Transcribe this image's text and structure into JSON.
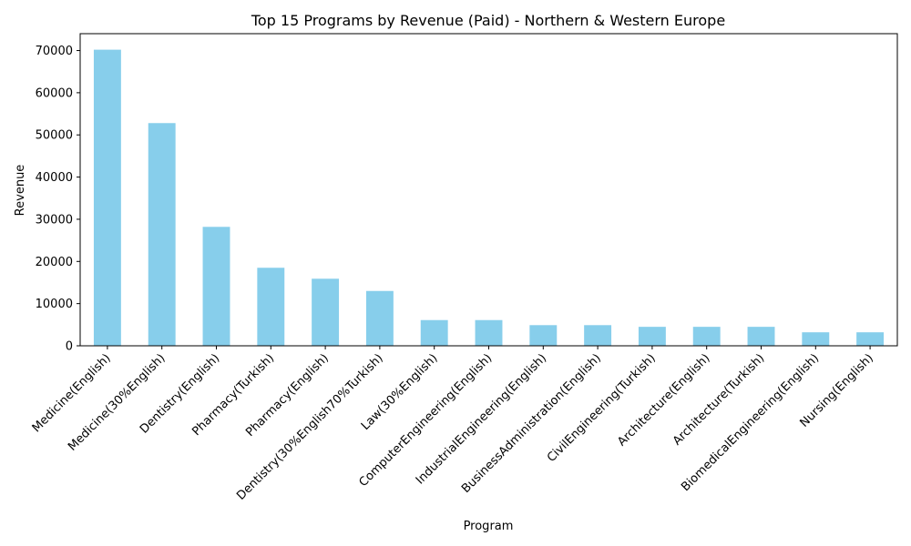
{
  "chart_data": {
    "type": "bar",
    "title": "Top 15 Programs by Revenue (Paid) - Northern & Western Europe",
    "xlabel": "Program",
    "ylabel": "Revenue",
    "ylim": [
      0,
      74000
    ],
    "yticks": [
      0,
      10000,
      20000,
      30000,
      40000,
      50000,
      60000,
      70000
    ],
    "bar_color": "#87CEEB",
    "grid": false,
    "legend": "none",
    "categories": [
      "Medicine(English)",
      "Medicine(30%English)",
      "Dentistry(English)",
      "Pharmacy(Turkish)",
      "Pharmacy(English)",
      "Dentistry(30%English70%Turkish)",
      "Law(30%English)",
      "ComputerEngineering(English)",
      "IndustrialEngineering(English)",
      "BusinessAdministration(English)",
      "CivilEngineering(Turkish)",
      "Architecture(English)",
      "Architecture(Turkish)",
      "BiomedicalEngineering(English)",
      "Nursing(English)"
    ],
    "values": [
      70200,
      52800,
      28200,
      18500,
      15900,
      13000,
      6100,
      6100,
      4900,
      4900,
      4500,
      4500,
      4500,
      3200,
      3200
    ]
  }
}
